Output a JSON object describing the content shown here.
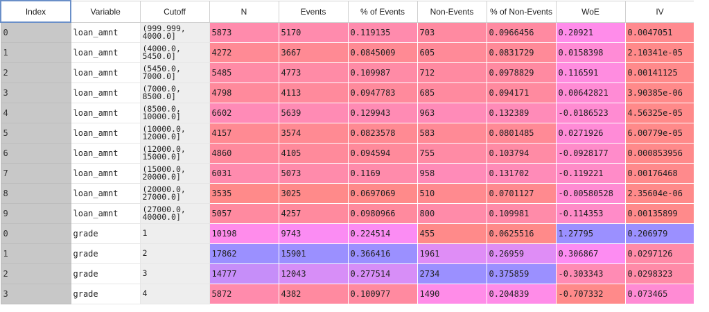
{
  "columns": [
    "Index",
    "Variable",
    "Cutoff",
    "N",
    "Events",
    "% of Events",
    "Non-Events",
    "% of Non-Events",
    "WoE",
    "IV"
  ],
  "rows": [
    {
      "index": "0",
      "variable": "loan_amnt",
      "cutoff": "(999.999,\n4000.0]",
      "n": "5873",
      "events": "5170",
      "pct_events": "0.119135",
      "non_events": "703",
      "pct_non_events": "0.0966456",
      "woe": "0.20921",
      "iv": "0.0047051"
    },
    {
      "index": "1",
      "variable": "loan_amnt",
      "cutoff": "(4000.0,\n5450.0]",
      "n": "4272",
      "events": "3667",
      "pct_events": "0.0845009",
      "non_events": "605",
      "pct_non_events": "0.0831729",
      "woe": "0.0158398",
      "iv": "2.10341e-05"
    },
    {
      "index": "2",
      "variable": "loan_amnt",
      "cutoff": "(5450.0,\n7000.0]",
      "n": "5485",
      "events": "4773",
      "pct_events": "0.109987",
      "non_events": "712",
      "pct_non_events": "0.0978829",
      "woe": "0.116591",
      "iv": "0.00141125"
    },
    {
      "index": "3",
      "variable": "loan_amnt",
      "cutoff": "(7000.0,\n8500.0]",
      "n": "4798",
      "events": "4113",
      "pct_events": "0.0947783",
      "non_events": "685",
      "pct_non_events": "0.094171",
      "woe": "0.00642821",
      "iv": "3.90385e-06"
    },
    {
      "index": "4",
      "variable": "loan_amnt",
      "cutoff": "(8500.0,\n10000.0]",
      "n": "6602",
      "events": "5639",
      "pct_events": "0.129943",
      "non_events": "963",
      "pct_non_events": "0.132389",
      "woe": "-0.0186523",
      "iv": "4.56325e-05"
    },
    {
      "index": "5",
      "variable": "loan_amnt",
      "cutoff": "(10000.0,\n12000.0]",
      "n": "4157",
      "events": "3574",
      "pct_events": "0.0823578",
      "non_events": "583",
      "pct_non_events": "0.0801485",
      "woe": "0.0271926",
      "iv": "6.00779e-05"
    },
    {
      "index": "6",
      "variable": "loan_amnt",
      "cutoff": "(12000.0,\n15000.0]",
      "n": "4860",
      "events": "4105",
      "pct_events": "0.094594",
      "non_events": "755",
      "pct_non_events": "0.103794",
      "woe": "-0.0928177",
      "iv": "0.000853956"
    },
    {
      "index": "7",
      "variable": "loan_amnt",
      "cutoff": "(15000.0,\n20000.0]",
      "n": "6031",
      "events": "5073",
      "pct_events": "0.1169",
      "non_events": "958",
      "pct_non_events": "0.131702",
      "woe": "-0.119221",
      "iv": "0.00176468"
    },
    {
      "index": "8",
      "variable": "loan_amnt",
      "cutoff": "(20000.0,\n27000.0]",
      "n": "3535",
      "events": "3025",
      "pct_events": "0.0697069",
      "non_events": "510",
      "pct_non_events": "0.0701127",
      "woe": "-0.00580528",
      "iv": "2.35604e-06"
    },
    {
      "index": "9",
      "variable": "loan_amnt",
      "cutoff": "(27000.0,\n40000.0]",
      "n": "5057",
      "events": "4257",
      "pct_events": "0.0980966",
      "non_events": "800",
      "pct_non_events": "0.109981",
      "woe": "-0.114353",
      "iv": "0.00135899"
    },
    {
      "index": "0",
      "variable": "grade",
      "cutoff": "1",
      "n": "10198",
      "events": "9743",
      "pct_events": "0.224514",
      "non_events": "455",
      "pct_non_events": "0.0625516",
      "woe": "1.27795",
      "iv": "0.206979"
    },
    {
      "index": "1",
      "variable": "grade",
      "cutoff": "2",
      "n": "17862",
      "events": "15901",
      "pct_events": "0.366416",
      "non_events": "1961",
      "pct_non_events": "0.26959",
      "woe": "0.306867",
      "iv": "0.0297126"
    },
    {
      "index": "2",
      "variable": "grade",
      "cutoff": "3",
      "n": "14777",
      "events": "12043",
      "pct_events": "0.277514",
      "non_events": "2734",
      "pct_non_events": "0.375859",
      "woe": "-0.303343",
      "iv": "0.0298323"
    },
    {
      "index": "3",
      "variable": "grade",
      "cutoff": "4",
      "n": "5872",
      "events": "4382",
      "pct_events": "0.100977",
      "non_events": "1490",
      "pct_non_events": "0.204839",
      "woe": "-0.707332",
      "iv": "0.073465"
    }
  ],
  "colors": {
    "header_bg": "#ffffff",
    "index_bg": "#c8c8c8",
    "cutoff_bg": "#eeeeee",
    "heat_low": "#ff8a8a",
    "heat_mid": "#ff8cf2",
    "heat_high": "#9b90ff"
  }
}
